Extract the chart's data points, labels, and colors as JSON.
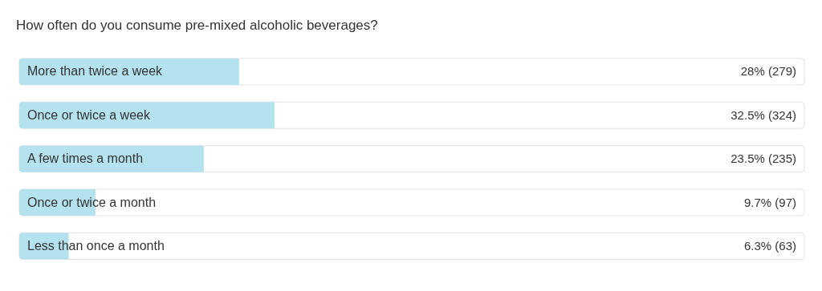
{
  "chart_data": {
    "type": "bar",
    "orientation": "horizontal",
    "title": "How often do you consume pre-mixed alcoholic beverages?",
    "categories": [
      "More than twice a week",
      "Once or twice a week",
      "A few times a month",
      "Once or twice a month",
      "Less than once a month"
    ],
    "values": [
      28,
      32.5,
      23.5,
      9.7,
      6.3
    ],
    "value_labels": [
      "28% (279)",
      "32.5% (324)",
      "23.5% (235)",
      "9.7% (97)",
      "6.3% (63)"
    ],
    "color": "#b4e2ef",
    "xlim": [
      0,
      100
    ]
  }
}
